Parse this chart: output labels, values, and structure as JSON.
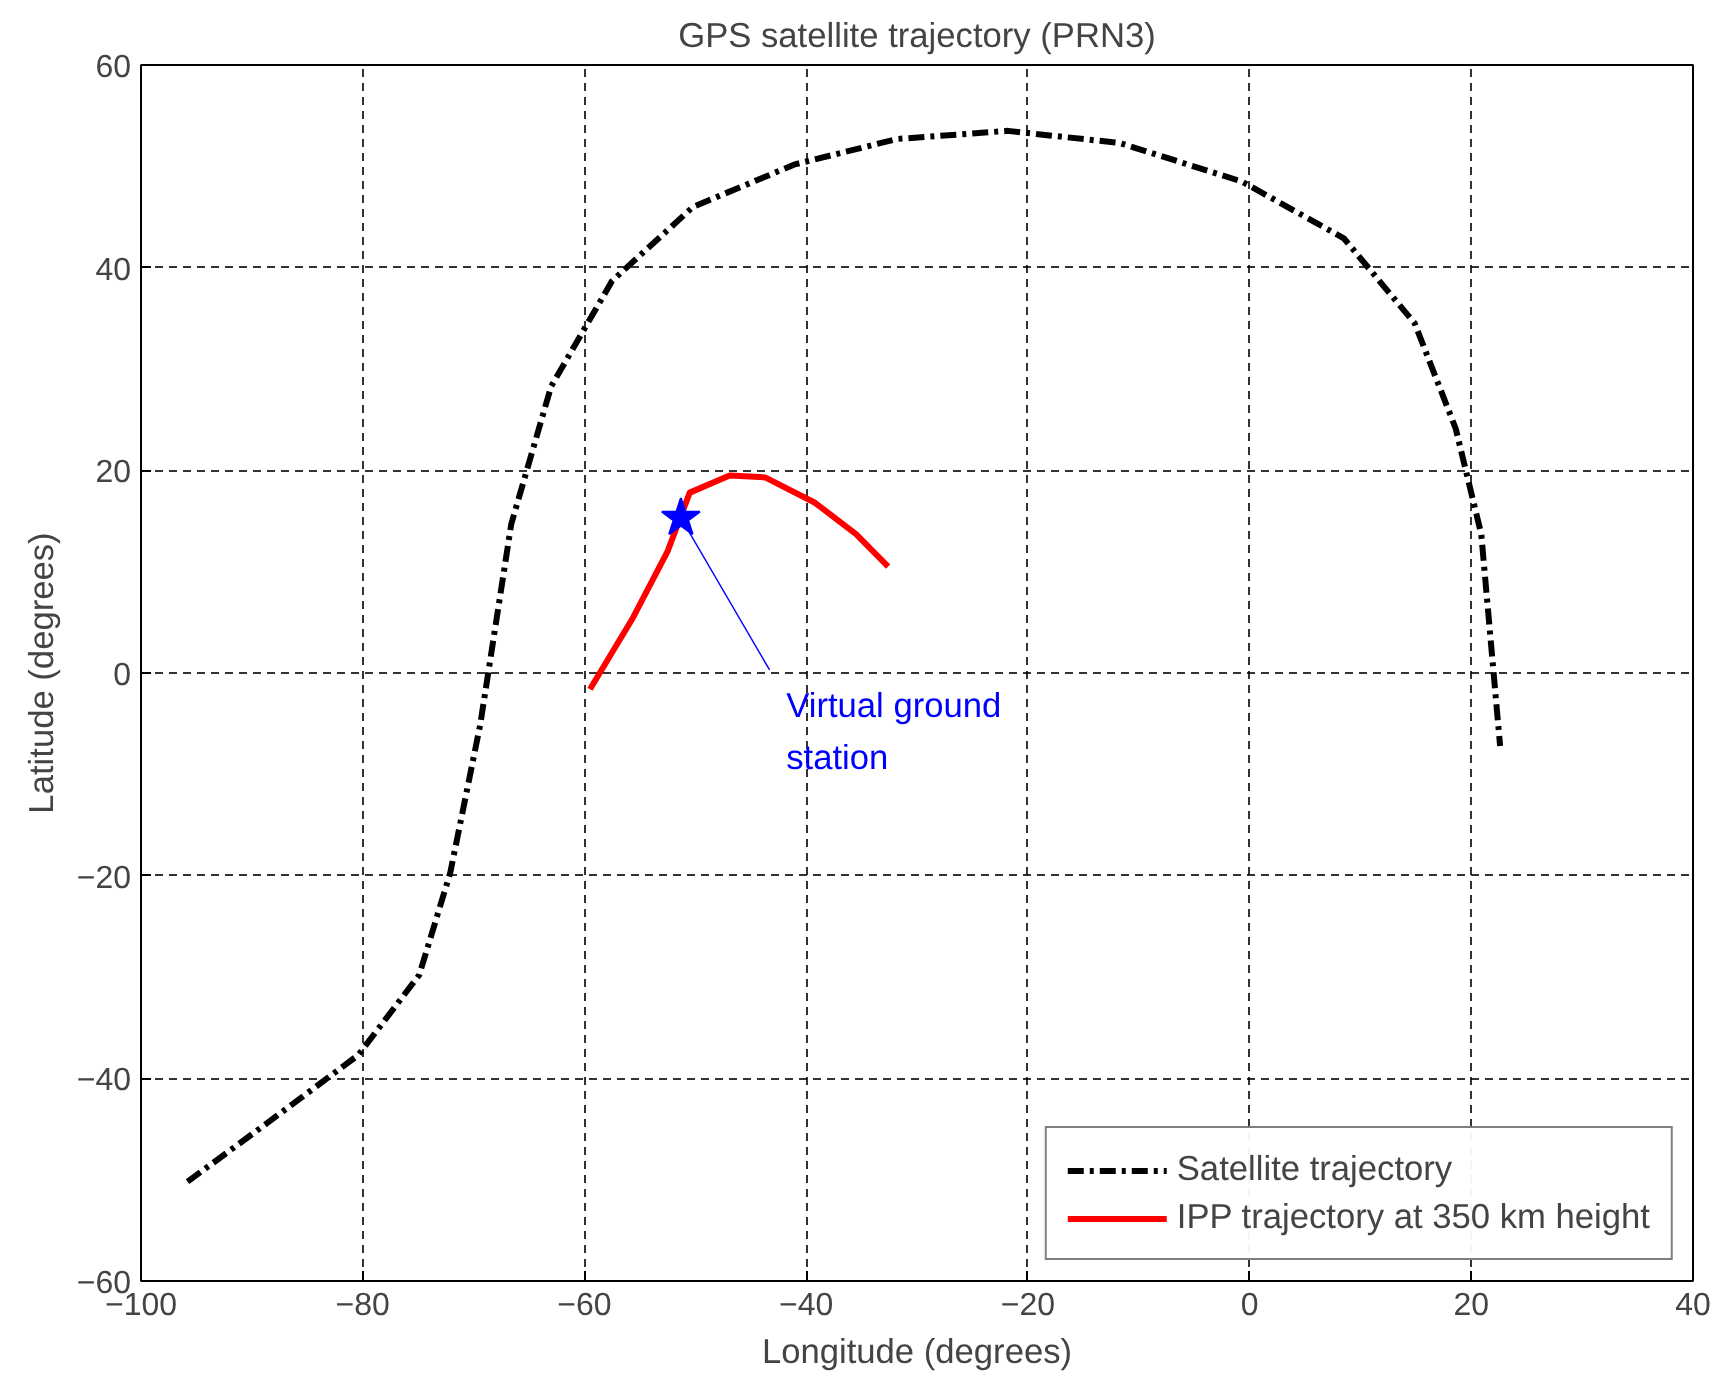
{
  "chart_data": {
    "type": "line",
    "title": "GPS satellite trajectory (PRN3)",
    "xlabel": "Longitude (degrees)",
    "ylabel": "Latitude (degrees)",
    "xlim": [
      -100,
      40
    ],
    "xticks": [
      -100,
      -80,
      -60,
      -40,
      -20,
      0,
      20,
      40
    ],
    "ylim": [
      -60,
      60
    ],
    "yticks": [
      -60,
      -40,
      -20,
      0,
      20,
      40,
      60
    ],
    "grid": true,
    "legend": "bottom right",
    "marker": "none",
    "series": [
      {
        "name": "Satellite trajectory",
        "color": "#000000",
        "line_style": "dashdot",
        "x": [
          -95.8,
          -88.6,
          -80.4,
          -74.9,
          -72.1,
          -69.4,
          -66.6,
          -63.0,
          -57.5,
          -50.2,
          -41.0,
          -31.8,
          -21.8,
          -11.7,
          -0.7,
          8.5,
          14.9,
          18.6,
          20.9,
          22.6
        ],
        "values": [
          -50.2,
          -44.4,
          -37.7,
          -29.8,
          -19.7,
          -5.1,
          14.7,
          28.3,
          38.7,
          46.0,
          50.2,
          52.7,
          53.5,
          52.3,
          48.5,
          42.9,
          34.5,
          24.1,
          13.7,
          -7.2
        ]
      },
      {
        "name": "IPP trajectory at 350 km height",
        "color": "#ff0000",
        "line_style": "solid",
        "x": [
          -59.5,
          -55.7,
          -52.5,
          -50.5,
          -46.9,
          -43.7,
          -39.2,
          -35.5,
          -32.6
        ],
        "values": [
          -1.6,
          5.3,
          12.0,
          17.8,
          19.5,
          19.3,
          16.8,
          13.7,
          10.5
        ]
      },
      {
        "type": "scatter",
        "marker": "star",
        "color": "#0000ff",
        "x": [
          -51.3
        ],
        "values": [
          15.3
        ]
      }
    ],
    "annotations": [
      {
        "text": "Virtual ground\nstation",
        "x": -51.3,
        "y": 15.3
      }
    ]
  }
}
